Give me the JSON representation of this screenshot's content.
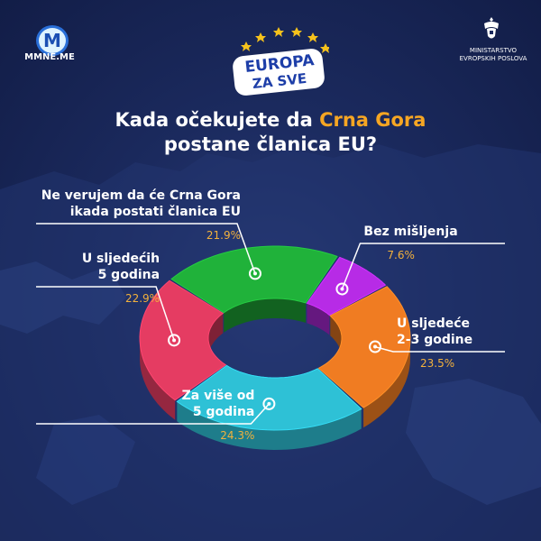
{
  "header": {
    "logo_left_text": "MMNE.ME",
    "logo_center_line1": "EUROPA",
    "logo_center_line2": "ZA SVE",
    "logo_right_line1": "MINISTARSTVO",
    "logo_right_line2": "EVROPSKIH POSLOVA"
  },
  "title": {
    "part1": "Kada očekujete da ",
    "highlight": "Crna Gora",
    "part2": "postane članica EU?"
  },
  "colors": {
    "highlight": "#f6a623",
    "percent": "#f2b13c"
  },
  "chart_data": {
    "type": "pie",
    "variant": "donut-3d",
    "categories": [
      "Bez mišljenja",
      "U sljedeće 2-3 godine",
      "Za više od 5 godina",
      "U sljedećih 5 godina",
      "Ne verujem da će Crna Gora ikada postati članica EU"
    ],
    "values": [
      7.6,
      23.5,
      24.3,
      22.9,
      21.9
    ],
    "value_labels": [
      "7.6%",
      "23.5%",
      "24.3%",
      "22.9%",
      "21.9%"
    ],
    "colors": [
      "#b72be6",
      "#f07c22",
      "#2ec1d6",
      "#e53c62",
      "#20b23a"
    ],
    "label_lines": [
      [
        "Bez mišljenja"
      ],
      [
        "U sljedeće",
        "2-3 godine"
      ],
      [
        "Za više od",
        "5 godina"
      ],
      [
        "U sljedećih",
        "5 godina"
      ],
      [
        "Ne verujem da će Crna Gora",
        "ikada postati članica EU"
      ]
    ]
  }
}
